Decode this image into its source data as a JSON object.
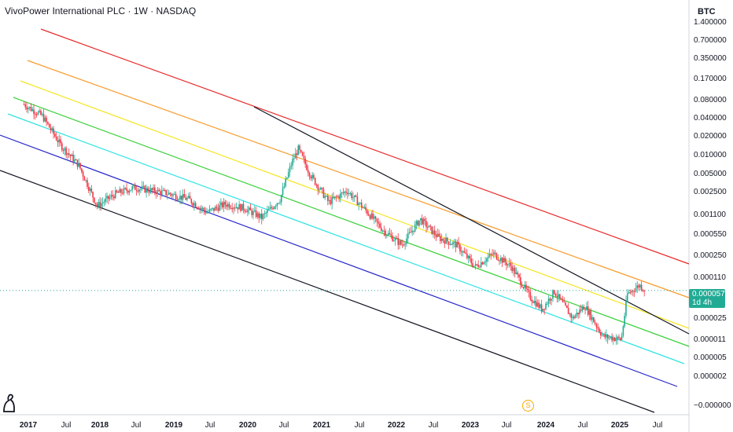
{
  "header": {
    "title": "VivoPower International PLC · 1W · NASDAQ",
    "currency": "BTC"
  },
  "price_badge": {
    "price": "0.000057",
    "countdown": "1d 4h"
  },
  "event_marker": "S",
  "colors": {
    "up": "#22ab94",
    "down": "#f23645",
    "channel_red": "#e82a2a",
    "channel_orange": "#f89b2b",
    "channel_yellow": "#f5e625",
    "channel_green": "#3bd13b",
    "channel_cyan": "#2fe3e3",
    "channel_blue": "#2626c9",
    "channel_black": "#131722"
  },
  "chart_data": {
    "type": "candlestick",
    "title": "VivoPower International PLC · 1W · NASDAQ",
    "y_scale": "log",
    "y_ticks": [
      "1.400000",
      "0.700000",
      "0.350000",
      "0.170000",
      "0.080000",
      "0.040000",
      "0.020000",
      "0.010000",
      "0.005000",
      "0.002500",
      "0.001100",
      "0.000550",
      "0.000250",
      "0.000110",
      "0.000057",
      "0.000025",
      "0.000011",
      "0.000005",
      "0.000002",
      "−0.000000"
    ],
    "x_ticks": [
      "2017",
      "Jul",
      "2018",
      "Jul",
      "2019",
      "Jul",
      "2020",
      "Jul",
      "2021",
      "Jul",
      "2022",
      "Jul",
      "2023",
      "Jul",
      "2024",
      "Jul",
      "2025",
      "Jul"
    ],
    "last_price": 5.7e-05,
    "price_path": [
      [
        "2017-01",
        0.065
      ],
      [
        "2017-04",
        0.042
      ],
      [
        "2017-07",
        0.014
      ],
      [
        "2017-10",
        0.0065
      ],
      [
        "2018-01",
        0.0014
      ],
      [
        "2018-04",
        0.0022
      ],
      [
        "2018-07",
        0.0028
      ],
      [
        "2018-10",
        0.0025
      ],
      [
        "2019-01",
        0.0022
      ],
      [
        "2019-04",
        0.0018
      ],
      [
        "2019-07",
        0.0011
      ],
      [
        "2019-10",
        0.0015
      ],
      [
        "2020-01",
        0.0013
      ],
      [
        "2020-04",
        0.0009
      ],
      [
        "2020-07",
        0.0018
      ],
      [
        "2020-09",
        0.0075
      ],
      [
        "2020-10",
        0.012
      ],
      [
        "2020-12",
        0.0045
      ],
      [
        "2021-03",
        0.0016
      ],
      [
        "2021-06",
        0.0025
      ],
      [
        "2021-09",
        0.0012
      ],
      [
        "2021-12",
        0.00055
      ],
      [
        "2022-03",
        0.00032
      ],
      [
        "2022-06",
        0.00085
      ],
      [
        "2022-09",
        0.00042
      ],
      [
        "2022-12",
        0.00032
      ],
      [
        "2023-03",
        0.00014
      ],
      [
        "2023-06",
        0.00023
      ],
      [
        "2023-09",
        0.00014
      ],
      [
        "2023-12",
        4.5e-05
      ],
      [
        "2024-02",
        2.8e-05
      ],
      [
        "2024-04",
        5.5e-05
      ],
      [
        "2024-07",
        2e-05
      ],
      [
        "2024-09",
        3.2e-05
      ],
      [
        "2024-12",
        1e-05
      ],
      [
        "2025-03",
        9e-06
      ],
      [
        "2025-04",
        5e-05
      ],
      [
        "2025-06",
        7e-05
      ],
      [
        "2025-07",
        5.7e-05
      ]
    ]
  }
}
